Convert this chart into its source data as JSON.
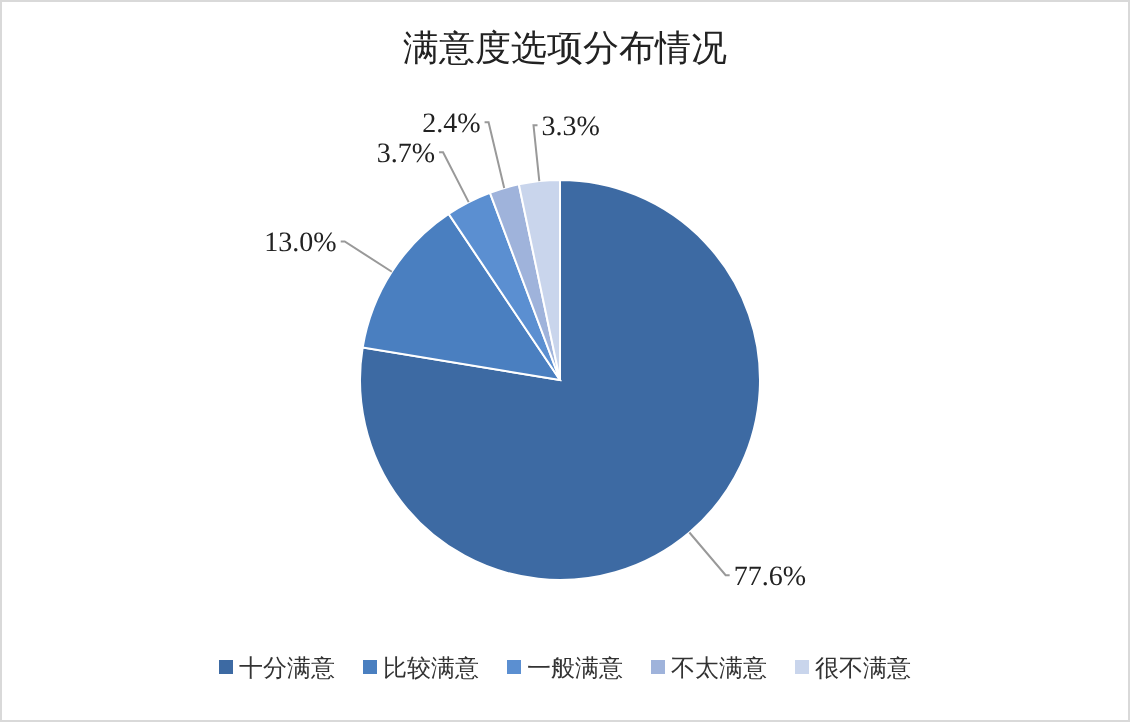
{
  "chart_data": {
    "type": "pie",
    "title": "满意度选项分布情况",
    "categories": [
      "十分满意",
      "比较满意",
      "一般满意",
      "不太满意",
      "很不满意"
    ],
    "values": [
      77.6,
      13.0,
      3.7,
      2.4,
      3.3
    ],
    "value_labels": [
      "77.6%",
      "13.0%",
      "3.7%",
      "2.4%",
      "3.3%"
    ],
    "colors": [
      "#3d6aa3",
      "#4a7fc0",
      "#5b8fd1",
      "#9fb3db",
      "#c9d5ec"
    ],
    "legend": "bottom"
  }
}
